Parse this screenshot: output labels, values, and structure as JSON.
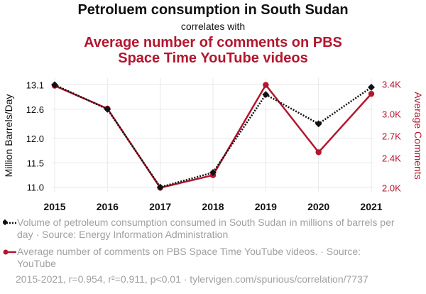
{
  "titles": {
    "line1": "Petroluem consumption in South Sudan",
    "line2": "correlates with",
    "line3": "Average number of comments on PBS Space Time YouTube videos"
  },
  "legend": {
    "series1": "Volume of petroleum consumption consumed in South Sudan in millions of barrels per day · Source: Energy Information Administration",
    "series2": "Average number of comments on PBS Space Time YouTube videos. · Source: YouTube"
  },
  "footer": "2015-2021, r=0.954, r²=0.911, p<0.01 · tylervigen.com/spurious/correlation/7737",
  "colors": {
    "series1": "#111111",
    "series2": "#b3162f",
    "grid": "#e8e8e8",
    "axis_text_left": "#111111",
    "axis_text_right": "#b3162f"
  },
  "chart_data": {
    "type": "line",
    "x": [
      "2015",
      "2016",
      "2017",
      "2018",
      "2019",
      "2020",
      "2021"
    ],
    "y_left": {
      "label": "Million Barrels/Day",
      "range": [
        10.95,
        13.15
      ],
      "ticks": [
        11.0,
        11.5,
        12.0,
        12.6,
        13.1
      ],
      "tick_labels": [
        "11.0",
        "11.5",
        "12.0",
        "12.6",
        "13.1"
      ]
    },
    "y_right": {
      "label": "Average Comments",
      "range": [
        1975,
        3425
      ],
      "ticks": [
        2000,
        2400,
        2700,
        3000,
        3400
      ],
      "tick_labels": [
        "2.0K",
        "2.4K",
        "2.7K",
        "3.0K",
        "3.4K"
      ]
    },
    "series": [
      {
        "axis": "left",
        "values": [
          13.1,
          12.6,
          11.0,
          11.3,
          12.9,
          12.3,
          13.05
        ],
        "style": "dotted",
        "marker": "diamond"
      },
      {
        "axis": "right",
        "values": [
          3380,
          3070,
          2000,
          2170,
          3390,
          2480,
          3270
        ],
        "style": "solid",
        "marker": "circle"
      }
    ],
    "grid": true
  }
}
